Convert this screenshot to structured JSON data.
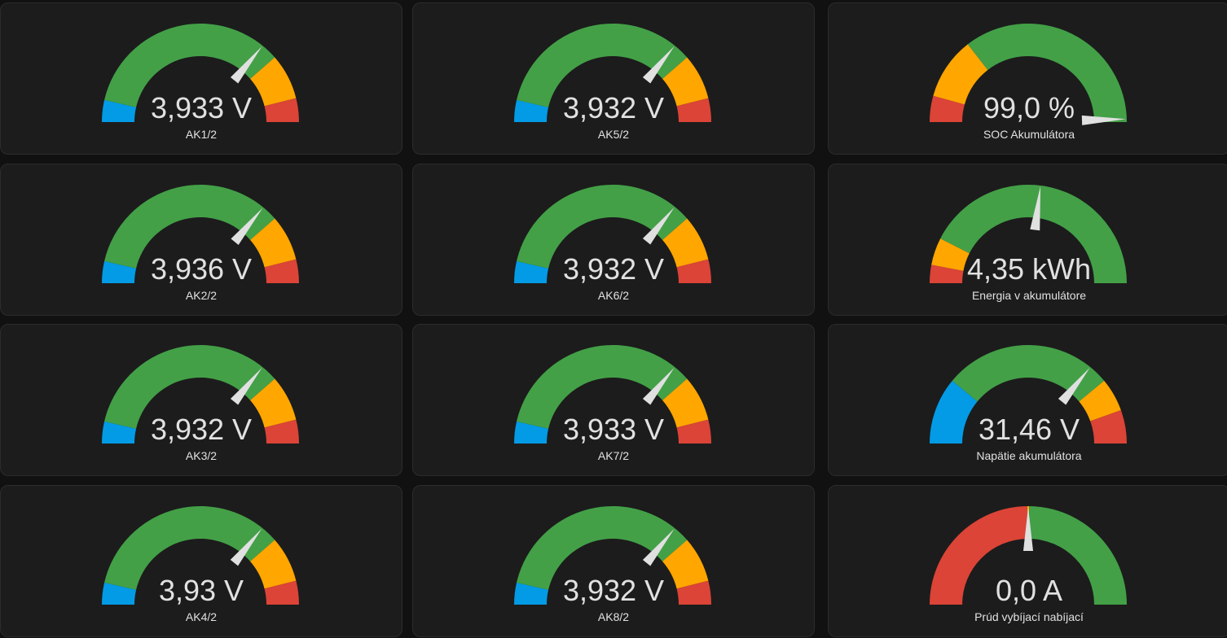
{
  "colors": {
    "blue": "#039be5",
    "green": "#43a047",
    "orange": "#ffa600",
    "red": "#db4437",
    "needle": "#e0e0e0",
    "card": "#1c1c1c"
  },
  "gauges": [
    {
      "value": "3,933 V",
      "name": "AK1/2",
      "needle_fraction": 0.717,
      "segments": [
        [
          "blue",
          0,
          0.072
        ],
        [
          "green",
          0.072,
          0.772
        ],
        [
          "orange",
          0.772,
          0.922
        ],
        [
          "red",
          0.922,
          1
        ]
      ]
    },
    {
      "value": "3,932 V",
      "name": "AK5/2",
      "needle_fraction": 0.717,
      "segments": [
        [
          "blue",
          0,
          0.072
        ],
        [
          "green",
          0.072,
          0.772
        ],
        [
          "orange",
          0.772,
          0.922
        ],
        [
          "red",
          0.922,
          1
        ]
      ]
    },
    {
      "value": "99,0 %",
      "name": "SOC Akumulátora",
      "needle_fraction": 0.99,
      "segments": [
        [
          "red",
          0,
          0.086
        ],
        [
          "orange",
          0.086,
          0.29
        ],
        [
          "green",
          0.29,
          1
        ]
      ]
    },
    {
      "value": "3,936 V",
      "name": "AK2/2",
      "needle_fraction": 0.72,
      "segments": [
        [
          "blue",
          0,
          0.072
        ],
        [
          "green",
          0.072,
          0.772
        ],
        [
          "orange",
          0.772,
          0.922
        ],
        [
          "red",
          0.922,
          1
        ]
      ]
    },
    {
      "value": "3,932 V",
      "name": "AK6/2",
      "needle_fraction": 0.717,
      "segments": [
        [
          "blue",
          0,
          0.072
        ],
        [
          "green",
          0.072,
          0.772
        ],
        [
          "orange",
          0.772,
          0.922
        ],
        [
          "red",
          0.922,
          1
        ]
      ]
    },
    {
      "value": "4,35 kWh",
      "name": "Energia v akumulátore",
      "needle_fraction": 0.54,
      "segments": [
        [
          "red",
          0,
          0.06
        ],
        [
          "orange",
          0.06,
          0.15
        ],
        [
          "green",
          0.15,
          1
        ]
      ]
    },
    {
      "value": "3,932 V",
      "name": "AK3/2",
      "needle_fraction": 0.717,
      "segments": [
        [
          "blue",
          0,
          0.072
        ],
        [
          "green",
          0.072,
          0.772
        ],
        [
          "orange",
          0.772,
          0.922
        ],
        [
          "red",
          0.922,
          1
        ]
      ]
    },
    {
      "value": "3,933 V",
      "name": "AK7/2",
      "needle_fraction": 0.717,
      "segments": [
        [
          "blue",
          0,
          0.072
        ],
        [
          "green",
          0.072,
          0.772
        ],
        [
          "orange",
          0.772,
          0.922
        ],
        [
          "red",
          0.922,
          1
        ]
      ]
    },
    {
      "value": "31,46 V",
      "name": "Napätie akumulátora",
      "needle_fraction": 0.717,
      "segments": [
        [
          "blue",
          0,
          0.22
        ],
        [
          "green",
          0.22,
          0.78
        ],
        [
          "orange",
          0.78,
          0.89
        ],
        [
          "red",
          0.89,
          1
        ]
      ]
    },
    {
      "value": "3,93 V",
      "name": "AK4/2",
      "needle_fraction": 0.716,
      "segments": [
        [
          "blue",
          0,
          0.072
        ],
        [
          "green",
          0.072,
          0.772
        ],
        [
          "orange",
          0.772,
          0.922
        ],
        [
          "red",
          0.922,
          1
        ]
      ]
    },
    {
      "value": "3,932 V",
      "name": "AK8/2",
      "needle_fraction": 0.717,
      "segments": [
        [
          "blue",
          0,
          0.072
        ],
        [
          "green",
          0.072,
          0.772
        ],
        [
          "orange",
          0.772,
          0.922
        ],
        [
          "red",
          0.922,
          1
        ]
      ]
    },
    {
      "value": "0,0 A",
      "name": "Prúd vybíjací nabíjací",
      "needle_fraction": 0.5,
      "segments": [
        [
          "red",
          0,
          0.497
        ],
        [
          "orange",
          0.497,
          0.503
        ],
        [
          "green",
          0.503,
          1
        ]
      ]
    }
  ]
}
